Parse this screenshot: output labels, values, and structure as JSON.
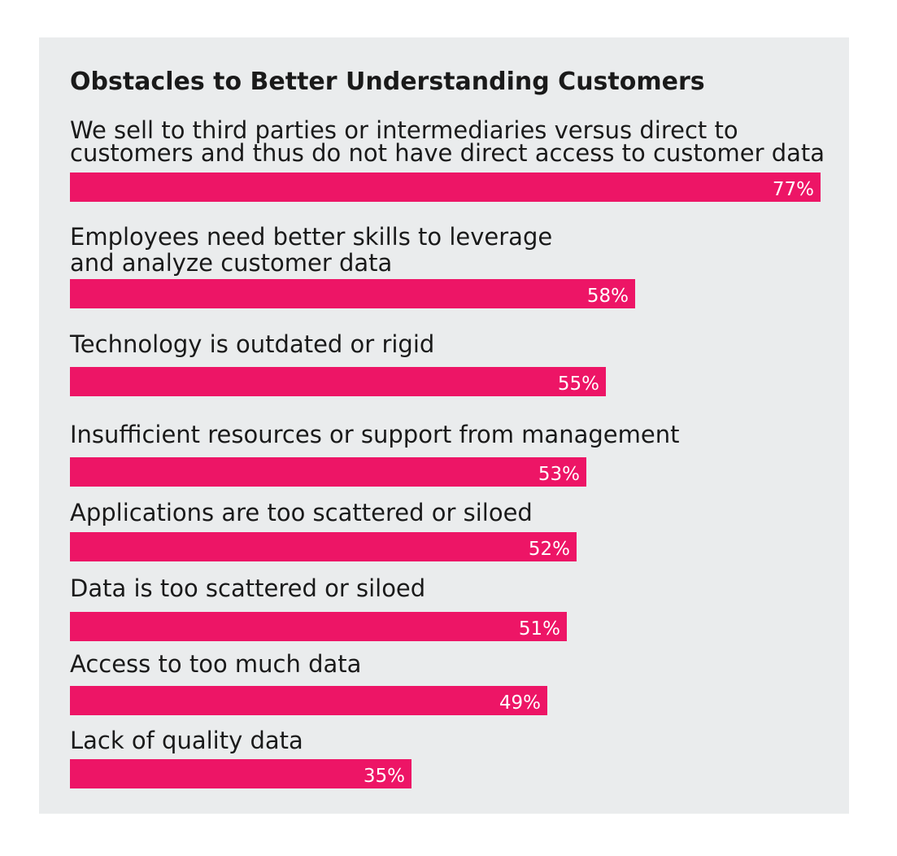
{
  "chart_data": {
    "type": "bar",
    "orientation": "horizontal",
    "title": "Obstacles to Better Understanding Customers",
    "categories": [
      [
        "We sell to third parties or intermediaries versus direct to",
        "customers and thus do not have direct access to customer data"
      ],
      [
        "Employees need better skills to leverage",
        "and analyze customer data"
      ],
      [
        "Technology is outdated or rigid"
      ],
      [
        "Insufficient resources or support from management"
      ],
      [
        "Applications are too scattered or siloed"
      ],
      [
        "Data is too scattered or siloed"
      ],
      [
        "Access to too much data"
      ],
      [
        "Lack of quality data"
      ]
    ],
    "values": [
      77,
      58,
      55,
      53,
      52,
      51,
      49,
      35
    ],
    "value_labels": [
      "77%",
      "58%",
      "55%",
      "53%",
      "52%",
      "51%",
      "49%",
      "35%"
    ],
    "unit": "%",
    "xlim": [
      0,
      77
    ],
    "grid": false,
    "legend": "none",
    "colors": {
      "bar": "#ed1566",
      "panel_background": "#eaeced",
      "text": "#1a1a1a",
      "value_text": "#ffffff"
    }
  }
}
